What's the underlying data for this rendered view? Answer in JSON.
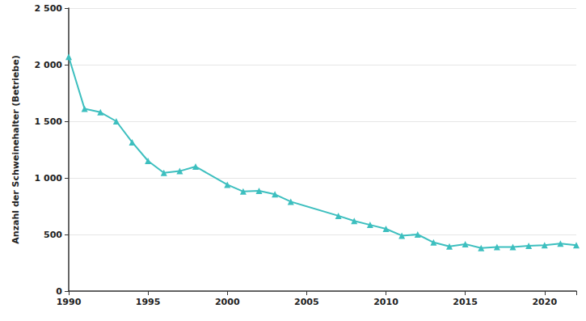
{
  "chart_data": {
    "type": "line",
    "ylabel": "Anzahl der Schweinehalter (Betriebe)",
    "x": [
      1990,
      1991,
      1992,
      1993,
      1994,
      1995,
      1996,
      1997,
      1998,
      2000,
      2001,
      2002,
      2003,
      2004,
      2007,
      2008,
      2009,
      2010,
      2011,
      2012,
      2013,
      2014,
      2015,
      2016,
      2017,
      2018,
      2019,
      2020,
      2021,
      2022
    ],
    "values": [
      2070,
      1610,
      1580,
      1500,
      1315,
      1150,
      1045,
      1060,
      1100,
      940,
      880,
      885,
      855,
      790,
      665,
      620,
      585,
      550,
      490,
      500,
      430,
      395,
      415,
      380,
      390,
      390,
      400,
      405,
      420,
      405
    ],
    "color": "#3dbfbf",
    "marker": "triangle",
    "xlim": [
      1990,
      2022
    ],
    "xticks": [
      1990,
      1995,
      2000,
      2005,
      2010,
      2015,
      2020
    ],
    "ylim": [
      0,
      2500
    ],
    "yticks": [
      0,
      500,
      {
        "value": 1000,
        "label": "1 000"
      },
      {
        "value": 1500,
        "label": "1 500"
      },
      {
        "value": 2000,
        "label": "2 000"
      },
      {
        "value": 2500,
        "label": "2 500"
      }
    ],
    "grid": true
  }
}
